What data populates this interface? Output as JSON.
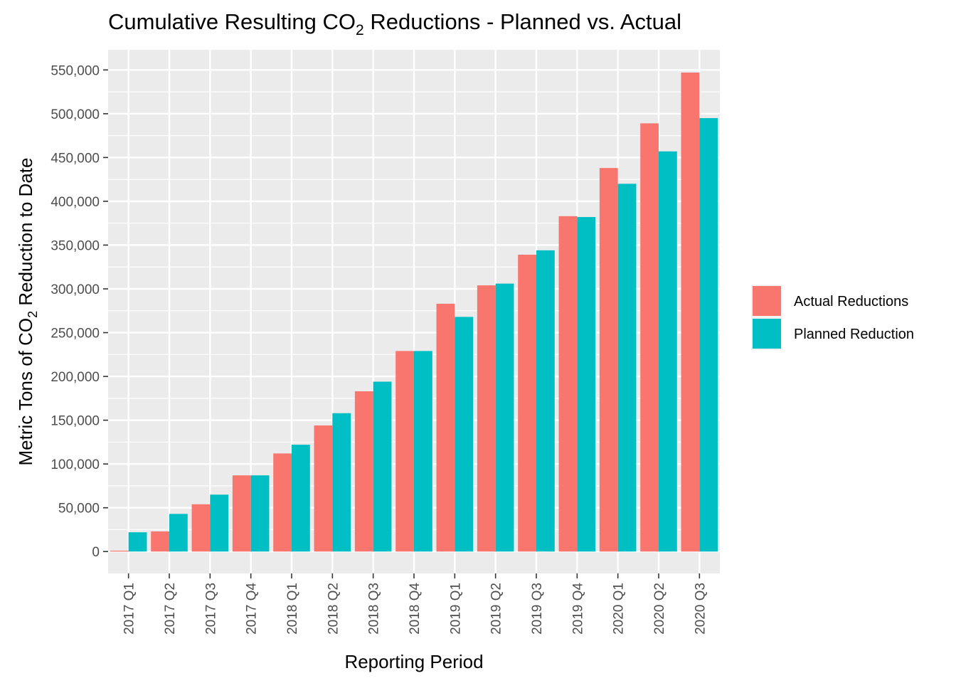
{
  "chart_data": {
    "type": "bar",
    "title_main": "Cumulative Resulting CO",
    "title_sub": "2",
    "title_rest": " Reductions - Planned vs. Actual",
    "xlabel": "Reporting Period",
    "ylabel_main": "Metric Tons of CO",
    "ylabel_sub": "2",
    "ylabel_rest": " Reduction to Date",
    "categories": [
      "2017 Q1",
      "2017 Q2",
      "2017 Q3",
      "2017 Q4",
      "2018 Q1",
      "2018 Q2",
      "2018 Q3",
      "2018 Q4",
      "2019 Q1",
      "2019 Q2",
      "2019 Q3",
      "2019 Q4",
      "2020 Q1",
      "2020 Q2",
      "2020 Q3"
    ],
    "series": [
      {
        "name": "Actual Reductions",
        "color": "#F8766D",
        "values": [
          1000,
          23000,
          54000,
          87000,
          112000,
          144000,
          183000,
          229000,
          283000,
          304000,
          339000,
          383000,
          438000,
          489000,
          547000
        ]
      },
      {
        "name": "Planned Reduction",
        "color": "#00BFC4",
        "values": [
          22000,
          43000,
          65000,
          87000,
          122000,
          158000,
          194000,
          229000,
          268000,
          306000,
          344000,
          382000,
          420000,
          457000,
          495000
        ]
      }
    ],
    "yticks": [
      0,
      50000,
      100000,
      150000,
      200000,
      250000,
      300000,
      350000,
      400000,
      450000,
      500000,
      550000
    ],
    "ytick_labels": [
      "0",
      "50,000",
      "100,000",
      "150,000",
      "200,000",
      "250,000",
      "300,000",
      "350,000",
      "400,000",
      "450,000",
      "500,000",
      "550,000"
    ],
    "ylim": [
      -25000,
      573000
    ],
    "grid": true,
    "legend_position": "right"
  }
}
